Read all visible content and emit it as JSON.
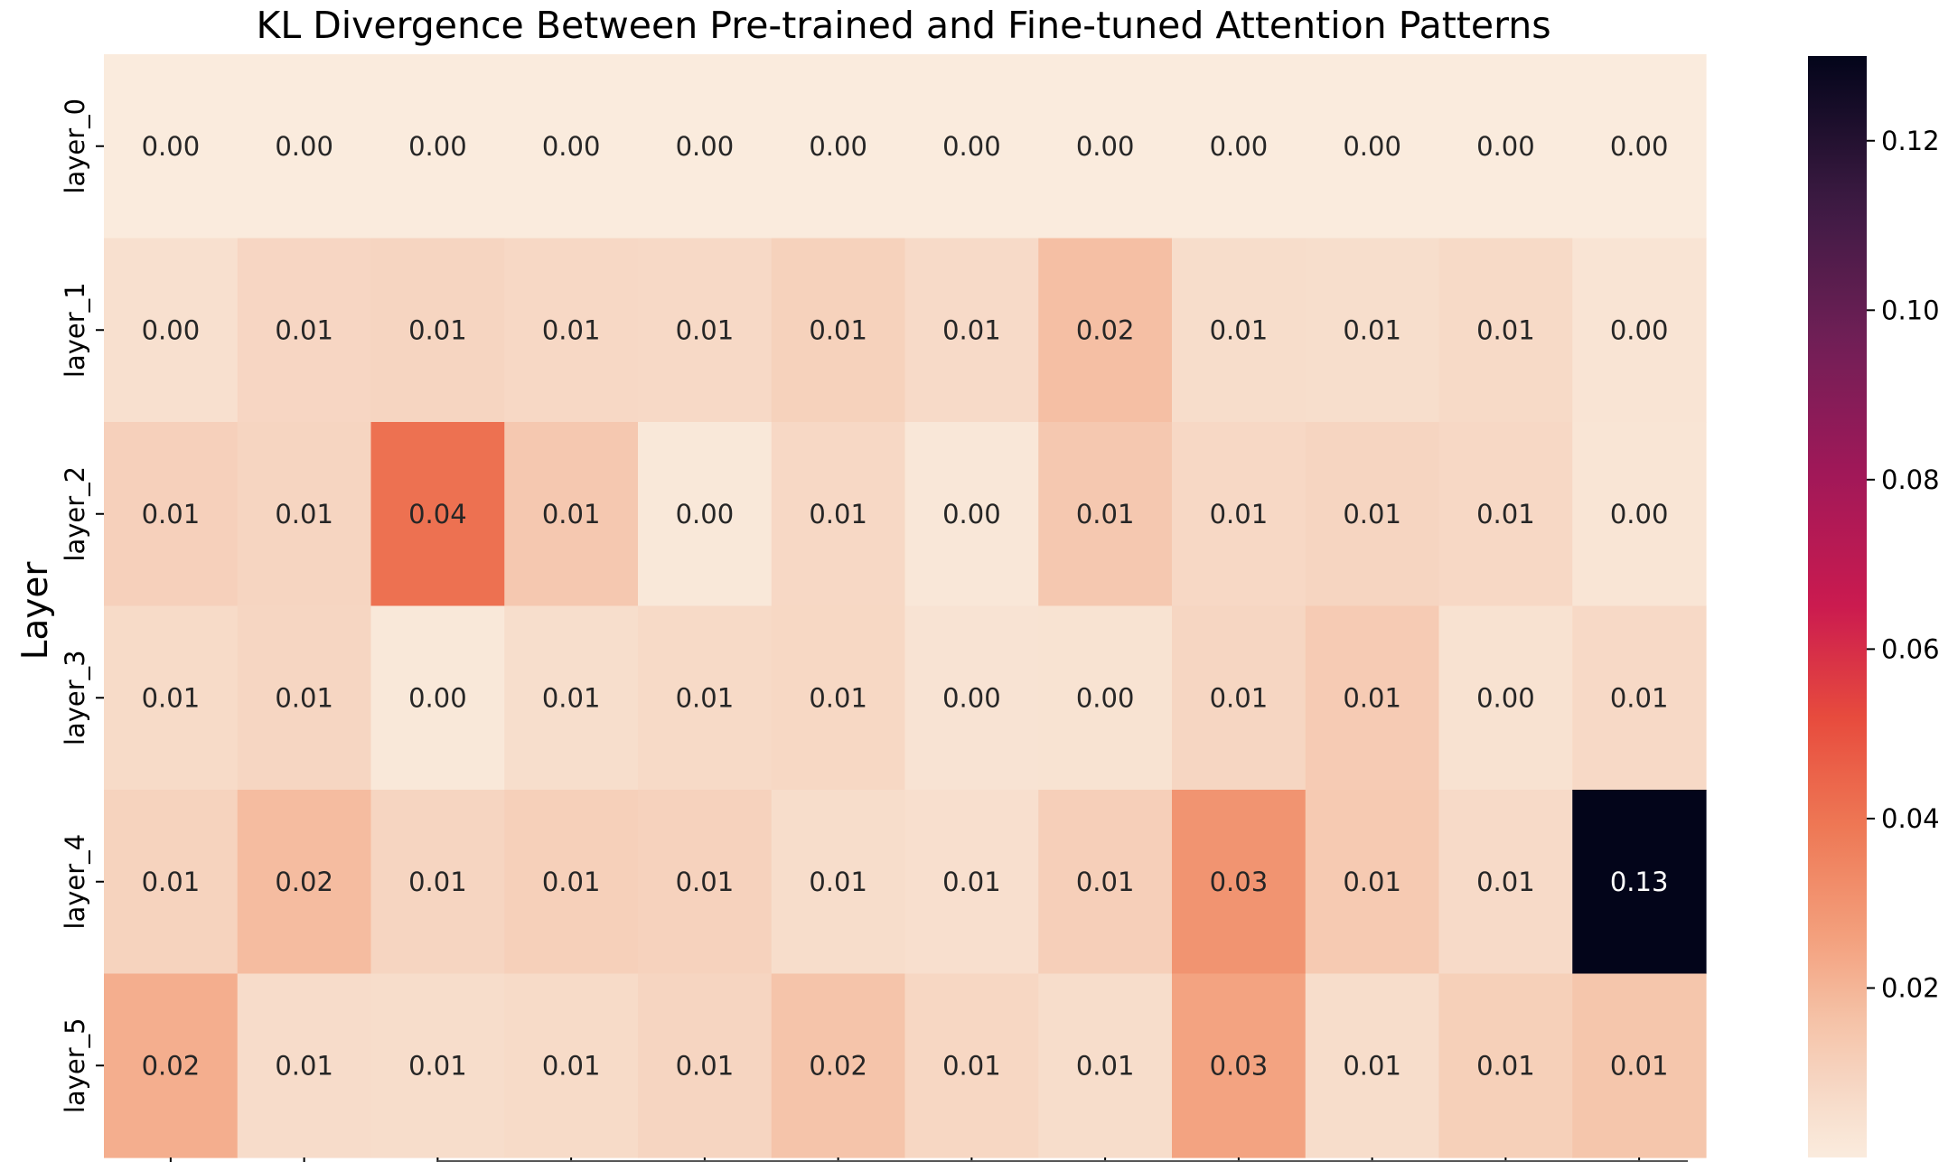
{
  "chart_data": {
    "type": "heatmap",
    "title": "KL Divergence Between Pre-trained and Fine-tuned Attention Patterns",
    "xlabel": "",
    "ylabel": "Layer",
    "rows": [
      "layer_0",
      "layer_1",
      "layer_2",
      "layer_3",
      "layer_4",
      "layer_5"
    ],
    "columns": [
      "",
      "",
      "",
      "",
      "",
      "",
      "",
      "",
      "",
      "",
      "",
      ""
    ],
    "values": [
      [
        0.0,
        0.0,
        0.0,
        0.0,
        0.0,
        0.0,
        0.0,
        0.0,
        0.0,
        0.0,
        0.0,
        0.0
      ],
      [
        0.0049,
        0.0086,
        0.0092,
        0.008,
        0.0075,
        0.0104,
        0.0071,
        0.017,
        0.0062,
        0.0058,
        0.0073,
        0.0032
      ],
      [
        0.0109,
        0.0092,
        0.041,
        0.014,
        0.0015,
        0.008,
        0.0018,
        0.014,
        0.008,
        0.009,
        0.008,
        0.0026
      ],
      [
        0.007,
        0.0089,
        0.0013,
        0.0058,
        0.0074,
        0.0082,
        0.0035,
        0.0036,
        0.0089,
        0.0128,
        0.004,
        0.0076
      ],
      [
        0.01,
        0.018,
        0.009,
        0.0111,
        0.0102,
        0.006,
        0.005,
        0.0113,
        0.03,
        0.0132,
        0.0072,
        0.13
      ],
      [
        0.022,
        0.0064,
        0.0062,
        0.007,
        0.009,
        0.0155,
        0.0085,
        0.0062,
        0.025,
        0.006,
        0.0112,
        0.015
      ]
    ],
    "cell_labels": [
      [
        "0.00",
        "0.00",
        "0.00",
        "0.00",
        "0.00",
        "0.00",
        "0.00",
        "0.00",
        "0.00",
        "0.00",
        "0.00",
        "0.00"
      ],
      [
        "0.00",
        "0.01",
        "0.01",
        "0.01",
        "0.01",
        "0.01",
        "0.01",
        "0.02",
        "0.01",
        "0.01",
        "0.01",
        "0.00"
      ],
      [
        "0.01",
        "0.01",
        "0.04",
        "0.01",
        "0.00",
        "0.01",
        "0.00",
        "0.01",
        "0.01",
        "0.01",
        "0.01",
        "0.00"
      ],
      [
        "0.01",
        "0.01",
        "0.00",
        "0.01",
        "0.01",
        "0.01",
        "0.00",
        "0.00",
        "0.01",
        "0.01",
        "0.00",
        "0.01"
      ],
      [
        "0.01",
        "0.02",
        "0.01",
        "0.01",
        "0.01",
        "0.01",
        "0.01",
        "0.01",
        "0.03",
        "0.01",
        "0.01",
        "0.13"
      ],
      [
        "0.02",
        "0.01",
        "0.01",
        "0.01",
        "0.01",
        "0.02",
        "0.01",
        "0.01",
        "0.03",
        "0.01",
        "0.01",
        "0.01"
      ]
    ],
    "colormap": "rocket_r",
    "colorbar": {
      "range": [
        0.0,
        0.13
      ],
      "ticks": [
        0.02,
        0.04,
        0.06,
        0.08,
        0.1,
        0.12
      ],
      "tick_labels": [
        "0.02",
        "0.04",
        "0.06",
        "0.08",
        "0.10",
        "0.12"
      ]
    },
    "grid": false,
    "legend": "colorbar-right"
  }
}
